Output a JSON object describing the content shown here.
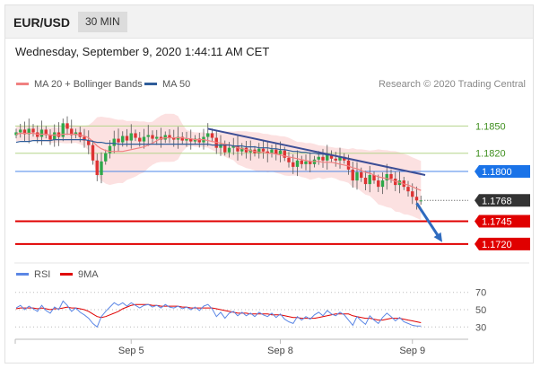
{
  "header": {
    "symbol": "EUR/USD",
    "timeframe": "30 MIN",
    "datetime": "Wednesday, September 9, 2020 1:44:11 AM CET"
  },
  "legend": {
    "ma20_label": "MA 20 + Bollinger Bands",
    "ma50_label": "MA 50",
    "copyright": "Research © 2020 Trading Central",
    "rsi_label": "RSI",
    "ma9_label": "9MA"
  },
  "colors": {
    "candle_up": "#2ea84a",
    "candle_down": "#dd3333",
    "ma20": "#f08080",
    "bollinger": "#fbd4d4",
    "ma50": "#2f5d9a",
    "level_support": "#e00000",
    "level_green": "#b5d58b",
    "level_blue": "#4a86e8",
    "trendline": "#3c4e96",
    "rsi": "#5b86e5",
    "rsi_ma": "#e00000"
  },
  "chart_data": [
    {
      "type": "line",
      "x_axis": {
        "labels": [
          "Sep 5",
          "Sep 8",
          "Sep 9"
        ],
        "label_bar_index": [
          27,
          62,
          93
        ],
        "bars": 96
      },
      "ylim": [
        1.1705,
        1.1885
      ],
      "levels": [
        {
          "value": 1.185,
          "label": "1.1850",
          "kind": "green"
        },
        {
          "value": 1.182,
          "label": "1.1820",
          "kind": "green"
        },
        {
          "value": 1.18,
          "label": "1.1800",
          "kind": "blue"
        },
        {
          "value": 1.1768,
          "label": "1.1768",
          "kind": "current"
        },
        {
          "value": 1.1745,
          "label": "1.1745",
          "kind": "red"
        },
        {
          "value": 1.172,
          "label": "1.1720",
          "kind": "red"
        }
      ],
      "trendline": {
        "from": {
          "bar": 45,
          "price": 1.1847
        },
        "to": {
          "bar": 96,
          "price": 1.1796
        }
      },
      "projection_arrow": {
        "from": {
          "bar": 94,
          "price": 1.1765
        },
        "to": {
          "bar": 100,
          "price": 1.1722
        }
      },
      "close": [
        1.1843,
        1.1846,
        1.1841,
        1.1847,
        1.1843,
        1.1838,
        1.1846,
        1.184,
        1.1835,
        1.1843,
        1.1838,
        1.1853,
        1.1847,
        1.184,
        1.1843,
        1.1838,
        1.1834,
        1.1829,
        1.1812,
        1.1796,
        1.1811,
        1.182,
        1.1828,
        1.1836,
        1.1832,
        1.1839,
        1.1834,
        1.1842,
        1.1837,
        1.1833,
        1.1838,
        1.184,
        1.1836,
        1.1838,
        1.1835,
        1.184,
        1.1837,
        1.1835,
        1.1838,
        1.1834,
        1.1836,
        1.1833,
        1.1836,
        1.1832,
        1.1838,
        1.1842,
        1.1837,
        1.1826,
        1.183,
        1.1821,
        1.1826,
        1.1828,
        1.1822,
        1.1826,
        1.1821,
        1.1824,
        1.182,
        1.1825,
        1.1822,
        1.182,
        1.1824,
        1.1819,
        1.1823,
        1.1815,
        1.181,
        1.1805,
        1.1812,
        1.1808,
        1.1811,
        1.1808,
        1.1813,
        1.1816,
        1.1812,
        1.1818,
        1.1814,
        1.1812,
        1.1816,
        1.1812,
        1.1802,
        1.179,
        1.1799,
        1.1793,
        1.1786,
        1.1796,
        1.179,
        1.1783,
        1.179,
        1.1797,
        1.1792,
        1.1785,
        1.179,
        1.1783,
        1.1778,
        1.1772,
        1.1768,
        1.1768
      ],
      "ma20": [
        1.1841,
        1.1842,
        1.1842,
        1.1842,
        1.1842,
        1.1841,
        1.1841,
        1.1841,
        1.184,
        1.184,
        1.184,
        1.1841,
        1.1841,
        1.1841,
        1.1841,
        1.184,
        1.1839,
        1.1837,
        1.1833,
        1.1828,
        1.1825,
        1.1823,
        1.1822,
        1.1822,
        1.1822,
        1.1822,
        1.1823,
        1.1824,
        1.1825,
        1.1826,
        1.1827,
        1.1829,
        1.1831,
        1.1834,
        1.1836,
        1.1837,
        1.1837,
        1.1837,
        1.1837,
        1.1837,
        1.1836,
        1.1836,
        1.1835,
        1.1835,
        1.1835,
        1.1834,
        1.1833,
        1.1832,
        1.1831,
        1.183,
        1.1829,
        1.1828,
        1.1826,
        1.1825,
        1.1824,
        1.1823,
        1.1822,
        1.1821,
        1.1821,
        1.182,
        1.182,
        1.1819,
        1.1818,
        1.1817,
        1.1816,
        1.1815,
        1.1814,
        1.1813,
        1.1812,
        1.1811,
        1.1811,
        1.1811,
        1.181,
        1.181,
        1.181,
        1.1809,
        1.1808,
        1.1807,
        1.1806,
        1.1804,
        1.1803,
        1.1801,
        1.1799,
        1.1798,
        1.1796,
        1.1794,
        1.1793,
        1.1792,
        1.1791,
        1.1789,
        1.1788,
        1.1786,
        1.1785,
        1.1783,
        1.1781,
        1.1779
      ],
      "ma50": [
        1.1832,
        1.1833,
        1.1833,
        1.1833,
        1.1834,
        1.1834,
        1.1834,
        1.1834,
        1.1834,
        1.1835,
        1.1835,
        1.1835,
        1.1835,
        1.1835,
        1.1835,
        1.1835,
        1.1835,
        1.1834,
        1.1833,
        1.1832,
        1.1832,
        1.1831,
        1.1831,
        1.1831,
        1.183,
        1.183,
        1.183,
        1.183,
        1.183,
        1.183,
        1.183,
        1.183,
        1.183,
        1.183,
        1.183,
        1.183,
        1.183,
        1.183,
        1.183,
        1.183,
        1.183,
        1.183,
        1.183,
        1.183,
        1.183,
        1.183,
        1.1829,
        1.1829,
        1.1829,
        1.1829,
        1.1829,
        1.1828,
        1.1828,
        1.1828,
        1.1827,
        1.1827,
        1.1827,
        1.1826,
        1.1826,
        1.1826,
        1.1825,
        1.1825,
        1.1824,
        1.1824,
        1.1823,
        1.1822,
        1.1822,
        1.1821,
        1.1821,
        1.182,
        1.182,
        1.1819,
        1.1819,
        1.1818,
        1.1818,
        1.1817,
        1.1816,
        1.1815,
        1.1814,
        1.1813,
        1.1812,
        1.1811,
        1.181,
        1.1809,
        1.1808,
        1.1807,
        1.1806,
        1.1805,
        1.1804,
        1.1803,
        1.1802,
        1.1801,
        1.18,
        1.1799,
        1.1798,
        1.1797
      ]
    },
    {
      "type": "line",
      "ylim": [
        22,
        78
      ],
      "levels": [
        {
          "value": 70,
          "label": "70"
        },
        {
          "value": 50,
          "label": "50"
        },
        {
          "value": 30,
          "label": "30"
        }
      ],
      "rsi": [
        52,
        55,
        50,
        54,
        51,
        48,
        55,
        49,
        46,
        53,
        50,
        60,
        55,
        48,
        52,
        47,
        44,
        40,
        34,
        30,
        42,
        48,
        53,
        58,
        55,
        58,
        54,
        58,
        55,
        52,
        55,
        56,
        53,
        55,
        52,
        56,
        53,
        52,
        54,
        51,
        53,
        50,
        53,
        49,
        54,
        56,
        51,
        42,
        47,
        40,
        46,
        48,
        43,
        47,
        43,
        46,
        42,
        47,
        44,
        42,
        46,
        41,
        45,
        39,
        36,
        34,
        42,
        38,
        42,
        39,
        44,
        47,
        43,
        49,
        45,
        43,
        47,
        44,
        38,
        32,
        42,
        37,
        33,
        43,
        38,
        34,
        41,
        46,
        42,
        37,
        41,
        36,
        34,
        32,
        31,
        31
      ],
      "rsi_ma": [
        51,
        52,
        52,
        52,
        52,
        51,
        52,
        51,
        50,
        51,
        51,
        52,
        53,
        52,
        52,
        51,
        50,
        48,
        45,
        42,
        41,
        42,
        44,
        46,
        48,
        51,
        53,
        55,
        56,
        56,
        56,
        56,
        55,
        55,
        54,
        54,
        54,
        54,
        54,
        53,
        53,
        52,
        52,
        52,
        52,
        52,
        52,
        51,
        50,
        49,
        48,
        47,
        46,
        46,
        46,
        45,
        45,
        45,
        45,
        45,
        44,
        44,
        44,
        43,
        42,
        41,
        41,
        40,
        40,
        40,
        40,
        41,
        42,
        43,
        44,
        45,
        45,
        45,
        45,
        43,
        42,
        41,
        40,
        40,
        39,
        38,
        38,
        39,
        40,
        40,
        40,
        39,
        38,
        37,
        36,
        35
      ]
    }
  ]
}
